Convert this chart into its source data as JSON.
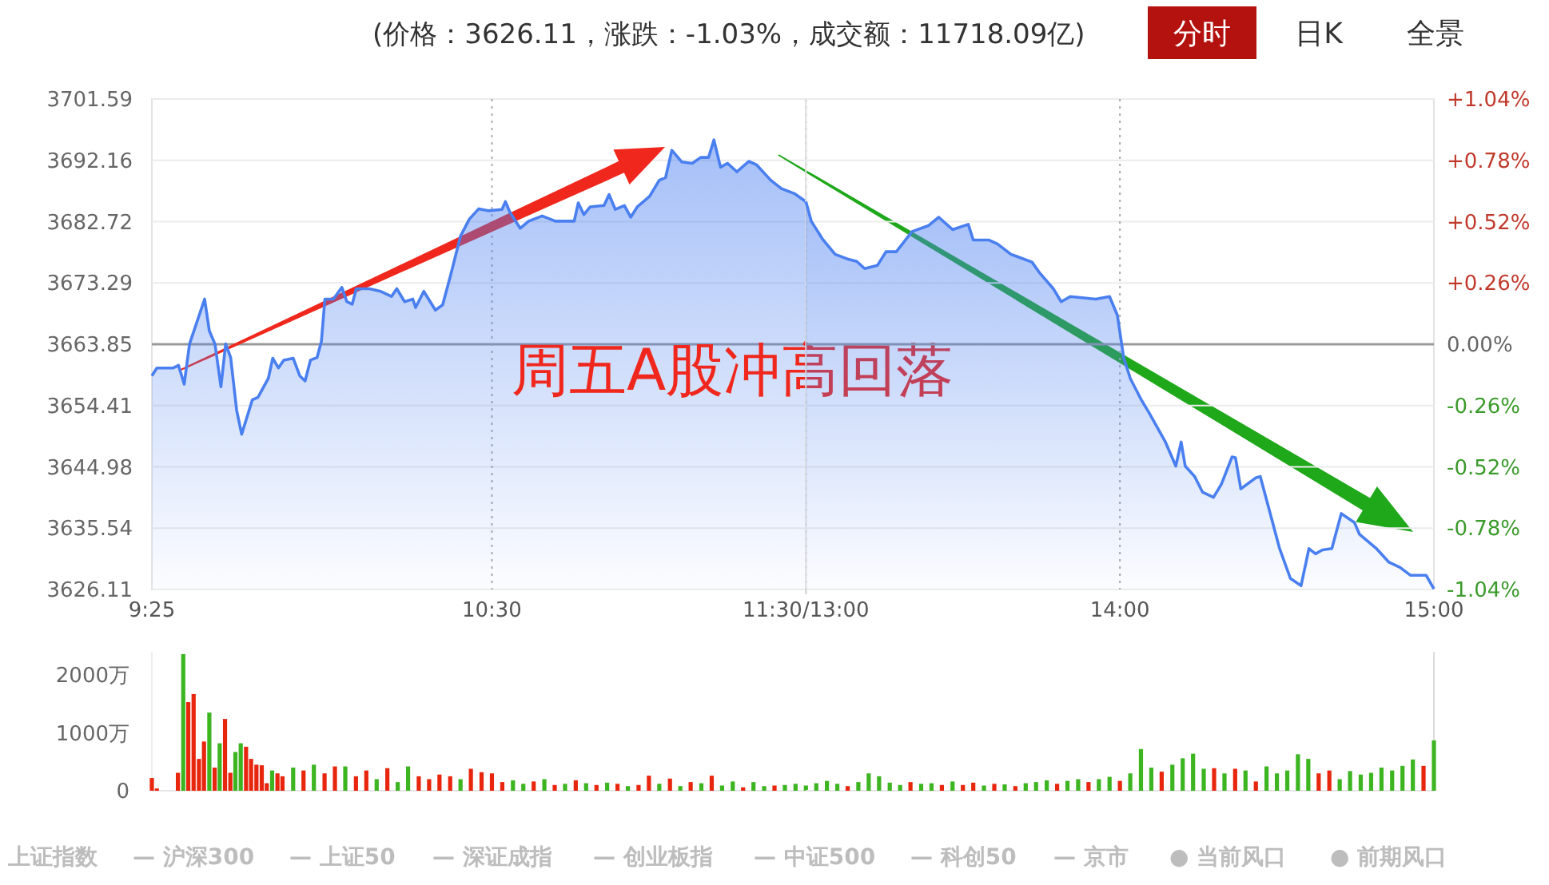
{
  "chart_data": [
    {
      "type": "area",
      "annotations": [
        "(价格：3626.11，涨跌：-1.03%，成交额：11718.09亿)",
        "分时",
        "日K",
        "全景",
        "周五A股冲高回落"
      ],
      "x": [
        9.417,
        9.433,
        9.485,
        9.502,
        9.52,
        9.537,
        9.585,
        9.6,
        9.618,
        9.637,
        9.652,
        9.668,
        9.687,
        9.703,
        9.737,
        9.755,
        9.788,
        9.802,
        9.82,
        9.837,
        9.867,
        9.888,
        9.905,
        9.922,
        9.943,
        9.957,
        9.968,
        9.995,
        10.022,
        10.038,
        10.055,
        10.068,
        10.11,
        10.145,
        10.18,
        10.197,
        10.222,
        10.248,
        10.257,
        10.283,
        10.32,
        10.343,
        10.368,
        10.4,
        10.428,
        10.458,
        10.488,
        10.532,
        10.543,
        10.557,
        10.59,
        10.617,
        10.66,
        10.702,
        10.728,
        10.762,
        10.775,
        10.793,
        10.813,
        10.857,
        10.873,
        10.893,
        10.922,
        10.942,
        10.963,
        11.002,
        11.033,
        11.053,
        11.073,
        11.105,
        11.138,
        11.165,
        11.19,
        11.207,
        11.228,
        11.25,
        11.28,
        11.318,
        11.342,
        11.388,
        11.422,
        11.465,
        11.5
      ],
      "xlim": [
        9.417,
        11.5
      ],
      "xticks": [
        {
          "value": 9.417,
          "label": "9:25"
        },
        {
          "value": 10.5,
          "label": "10:30"
        },
        {
          "value": 11.5,
          "label": "11:30/13:00"
        }
      ],
      "ylim": [
        3626.11,
        3701.59
      ],
      "yticks": [
        3626.11,
        3635.54,
        3644.98,
        3654.41,
        3663.85,
        3673.29,
        3682.72,
        3692.16,
        3701.59
      ],
      "series": [
        {
          "color": "#4a7ff0",
          "values": [
            3659.0,
            3660.2,
            3660.2,
            3660.6,
            3657.7,
            3663.9,
            3670.8,
            3665.9,
            3663.9,
            3657.3,
            3663.9,
            3661.8,
            3653.7,
            3650.0,
            3655.3,
            3655.7,
            3658.6,
            3661.7,
            3660.2,
            3661.4,
            3661.7,
            3659.0,
            3658.2,
            3661.4,
            3661.8,
            3664.3,
            3670.8,
            3670.8,
            3672.6,
            3670.4,
            3670.0,
            3672.4,
            3672.4,
            3672.0,
            3671.2,
            3672.4,
            3670.4,
            3670.8,
            3669.5,
            3672.0,
            3669.1,
            3669.9,
            3674.4,
            3680.5,
            3683.1,
            3684.7,
            3684.4,
            3684.6,
            3685.8,
            3684.2,
            3681.7,
            3682.8,
            3683.6,
            3682.8,
            3682.8,
            3682.8,
            3685.6,
            3683.8,
            3685.0,
            3685.2,
            3686.9,
            3684.6,
            3685.2,
            3683.4,
            3685.0,
            3686.6,
            3689.1,
            3689.5,
            3693.7,
            3691.9,
            3691.7,
            3692.6,
            3692.6,
            3695.3,
            3691.1,
            3691.7,
            3690.4,
            3692.0,
            3691.5,
            3689.1,
            3687.8,
            3687.0,
            3685.8
          ]
        }
      ],
      "ref_lines": [
        {
          "axis": "y",
          "value": 3663.85,
          "color": "#9a9a9a"
        },
        {
          "axis": "x",
          "value": 10.5,
          "color": "#aaaaaa",
          "line_style": "dotted"
        }
      ],
      "grid": "y"
    },
    {
      "type": "area",
      "x": [
        13,
        13.017,
        13.052,
        13.093,
        13.137,
        13.162,
        13.187,
        13.228,
        13.255,
        13.288,
        13.338,
        13.39,
        13.423,
        13.467,
        13.517,
        13.533,
        13.582,
        13.61,
        13.653,
        13.72,
        13.745,
        13.788,
        13.813,
        13.842,
        13.923,
        13.967,
        13.992,
        14.012,
        14.033,
        14.068,
        14.093,
        14.145,
        14.178,
        14.195,
        14.208,
        14.238,
        14.263,
        14.298,
        14.323,
        14.357,
        14.368,
        14.385,
        14.433,
        14.447,
        14.467,
        14.508,
        14.543,
        14.577,
        14.602,
        14.623,
        14.645,
        14.675,
        14.705,
        14.747,
        14.763,
        14.815,
        14.857,
        14.892,
        14.925,
        14.975,
        15
      ],
      "xlim": [
        13,
        15
      ],
      "xticks": [
        {
          "value": 13,
          "label": null
        },
        {
          "value": 14,
          "label": "14:00"
        },
        {
          "value": 15,
          "label": "15:00"
        }
      ],
      "ylim": [
        3626.11,
        3701.59
      ],
      "yticks": [
        3626.11,
        3635.54,
        3644.98,
        3654.41,
        3663.85,
        3673.29,
        3682.72,
        3692.16,
        3701.59
      ],
      "y2lim": [
        -1.04,
        1.04
      ],
      "y2ticks": [
        {
          "value": -1.04,
          "label": "-1.04%"
        },
        {
          "value": -0.78,
          "label": "-0.78%"
        },
        {
          "value": -0.52,
          "label": "-0.52%"
        },
        {
          "value": -0.26,
          "label": "-0.26%"
        },
        {
          "value": 0,
          "label": "0.00%"
        },
        {
          "value": 0.26,
          "label": "+0.26%"
        },
        {
          "value": 0.52,
          "label": "+0.52%"
        },
        {
          "value": 0.78,
          "label": "+0.78%"
        },
        {
          "value": 1.04,
          "label": "+1.04%"
        }
      ],
      "series": [
        {
          "color": "#4a7ff0",
          "values": [
            3685.8,
            3682.8,
            3680.1,
            3677.7,
            3676.9,
            3676.6,
            3675.5,
            3676.0,
            3678.1,
            3678.1,
            3681.2,
            3682.1,
            3683.4,
            3681.5,
            3682.3,
            3679.9,
            3679.9,
            3679.3,
            3677.7,
            3676.5,
            3674.8,
            3672.4,
            3670.4,
            3671.2,
            3670.8,
            3671.2,
            3668.3,
            3661.8,
            3658.6,
            3655.3,
            3653.3,
            3648.8,
            3645.1,
            3648.8,
            3645.1,
            3643.5,
            3641.1,
            3640.3,
            3642.3,
            3646.5,
            3646.4,
            3641.6,
            3643.3,
            3643.5,
            3639.9,
            3632.5,
            3627.8,
            3626.7,
            3632.4,
            3631.6,
            3632.2,
            3632.4,
            3637.8,
            3636.4,
            3634.6,
            3632.5,
            3630.3,
            3629.5,
            3628.3,
            3628.3,
            3626.2
          ]
        }
      ],
      "ref_lines": [
        {
          "axis": "y",
          "value": 3663.85,
          "color": "#9a9a9a"
        },
        {
          "axis": "x",
          "value": 14,
          "color": "#aaaaaa",
          "line_style": "dotted"
        }
      ],
      "grid": "y",
      "tick_labels": "x"
    },
    {
      "type": "bar",
      "annotations": [
        "上证指数",
        "— 沪深300",
        "— 上证50",
        "— 深证成指",
        "— 创业板指",
        "— 中证500",
        "— 科创50",
        "— 京市",
        "● 当前风口",
        "● 前期风口"
      ],
      "xlim": [
        9.417,
        11.5
      ],
      "ylim": [
        0,
        2400
      ],
      "x": [
        9.417,
        9.433,
        9.5,
        9.517,
        9.533,
        9.55,
        9.567,
        9.583,
        9.6,
        9.617,
        9.633,
        9.65,
        9.667,
        9.683,
        9.7,
        9.717,
        9.733,
        9.75,
        9.767,
        9.783,
        9.8,
        9.817,
        9.833,
        9.867,
        9.9,
        9.933,
        9.967,
        10,
        10.033,
        10.067,
        10.1,
        10.133,
        10.167,
        10.2,
        10.233,
        10.267,
        10.3,
        10.333,
        10.367,
        10.4,
        10.433,
        10.467,
        10.5,
        10.533,
        10.567,
        10.6,
        10.633,
        10.667,
        10.7,
        10.733,
        10.767,
        10.8,
        10.833,
        10.867,
        10.9,
        10.933,
        10.967,
        11,
        11.033,
        11.067,
        11.1,
        11.133,
        11.167,
        11.2,
        11.233,
        11.267,
        11.3,
        11.333,
        11.367,
        11.4,
        11.433,
        11.467,
        11.5
      ],
      "yticks": [
        {
          "value": 0,
          "label": "0"
        },
        {
          "value": 1000,
          "label": "1000万"
        },
        {
          "value": 2000,
          "label": "2000万"
        }
      ],
      "values": [
        220,
        40,
        310,
        2360,
        1530,
        1670,
        550,
        850,
        1350,
        400,
        820,
        1240,
        310,
        670,
        820,
        760,
        550,
        450,
        440,
        130,
        350,
        300,
        250,
        400,
        350,
        450,
        300,
        420,
        420,
        250,
        350,
        200,
        390,
        150,
        420,
        250,
        200,
        280,
        250,
        200,
        380,
        320,
        300,
        150,
        180,
        120,
        160,
        200,
        100,
        120,
        180,
        130,
        100,
        140,
        120,
        80,
        100,
        260,
        120,
        210,
        80,
        150,
        130,
        260,
        90,
        160,
        60,
        150,
        80,
        90,
        100,
        120,
        90
      ],
      "colors": [
        "#e8260e",
        "#e8260e",
        "#e8260e",
        "#3cb521",
        "#e8260e",
        "#e8260e",
        "#e8260e",
        "#e8260e",
        "#3cb521",
        "#e8260e",
        "#3cb521",
        "#e8260e",
        "#e8260e",
        "#3cb521",
        "#3cb521",
        "#e8260e",
        "#e8260e",
        "#e8260e",
        "#e8260e",
        "#e8260e",
        "#3cb521",
        "#e8260e",
        "#e8260e",
        "#3cb521",
        "#e8260e",
        "#3cb521",
        "#e8260e",
        "#e8260e",
        "#3cb521",
        "#e8260e",
        "#e8260e",
        "#3cb521",
        "#e8260e",
        "#3cb521",
        "#3cb521",
        "#e8260e",
        "#e8260e",
        "#e8260e",
        "#e8260e",
        "#3cb521",
        "#e8260e",
        "#e8260e",
        "#e8260e",
        "#e8260e",
        "#3cb521",
        "#3cb521",
        "#e8260e",
        "#3cb521",
        "#e8260e",
        "#3cb521",
        "#e8260e",
        "#3cb521",
        "#e8260e",
        "#3cb521",
        "#e8260e",
        "#3cb521",
        "#e8260e",
        "#e8260e",
        "#3cb521",
        "#e8260e",
        "#3cb521",
        "#e8260e",
        "#3cb521",
        "#e8260e",
        "#3cb521",
        "#3cb521",
        "#e8260e",
        "#3cb521",
        "#3cb521",
        "#e8260e",
        "#3cb521",
        "#3cb521",
        "#3cb521"
      ],
      "tick_labels": "y"
    },
    {
      "type": "bar",
      "xlim": [
        13,
        15
      ],
      "ylim": [
        0,
        2400
      ],
      "x": [
        13.033,
        13.067,
        13.1,
        13.133,
        13.167,
        13.2,
        13.233,
        13.267,
        13.3,
        13.333,
        13.367,
        13.4,
        13.433,
        13.467,
        13.5,
        13.533,
        13.567,
        13.6,
        13.633,
        13.667,
        13.7,
        13.733,
        13.767,
        13.8,
        13.833,
        13.867,
        13.9,
        13.933,
        13.967,
        14,
        14.033,
        14.067,
        14.1,
        14.133,
        14.167,
        14.2,
        14.233,
        14.267,
        14.3,
        14.333,
        14.367,
        14.4,
        14.433,
        14.467,
        14.5,
        14.533,
        14.567,
        14.6,
        14.633,
        14.667,
        14.7,
        14.733,
        14.767,
        14.8,
        14.833,
        14.867,
        14.9,
        14.933,
        14.967,
        15
      ],
      "values": [
        130,
        170,
        120,
        80,
        150,
        300,
        250,
        140,
        100,
        150,
        120,
        130,
        100,
        160,
        100,
        140,
        90,
        120,
        110,
        80,
        130,
        150,
        180,
        120,
        170,
        200,
        150,
        200,
        240,
        170,
        300,
        720,
        400,
        330,
        450,
        560,
        640,
        380,
        390,
        300,
        380,
        350,
        160,
        420,
        300,
        350,
        630,
        550,
        300,
        350,
        200,
        340,
        280,
        310,
        400,
        350,
        430,
        540,
        430,
        870
      ],
      "colors": [
        "#3cb521",
        "#3cb521",
        "#3cb521",
        "#e8260e",
        "#3cb521",
        "#3cb521",
        "#3cb521",
        "#3cb521",
        "#3cb521",
        "#e8260e",
        "#3cb521",
        "#3cb521",
        "#e8260e",
        "#3cb521",
        "#e8260e",
        "#e8260e",
        "#3cb521",
        "#e8260e",
        "#3cb521",
        "#e8260e",
        "#3cb521",
        "#3cb521",
        "#3cb521",
        "#e8260e",
        "#3cb521",
        "#3cb521",
        "#e8260e",
        "#3cb521",
        "#3cb521",
        "#e8260e",
        "#3cb521",
        "#3cb521",
        "#3cb521",
        "#e8260e",
        "#3cb521",
        "#3cb521",
        "#3cb521",
        "#3cb521",
        "#e8260e",
        "#3cb521",
        "#e8260e",
        "#3cb521",
        "#e8260e",
        "#3cb521",
        "#3cb521",
        "#3cb521",
        "#3cb521",
        "#3cb521",
        "#e8260e",
        "#e8260e",
        "#3cb521",
        "#3cb521",
        "#3cb521",
        "#3cb521",
        "#3cb521",
        "#3cb521",
        "#3cb521",
        "#3cb521",
        "#e8260e",
        "#3cb521"
      ],
      "tick_labels": false
    }
  ]
}
